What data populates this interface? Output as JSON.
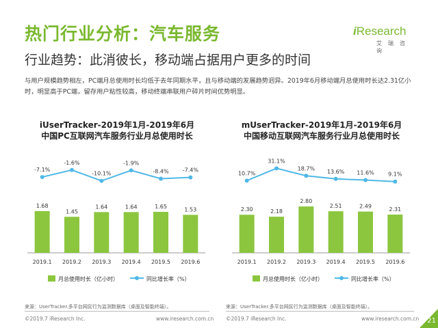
{
  "header": {
    "title": "热门行业分析：汽车服务",
    "subtitle": "行业趋势：此消彼长，移动端占据用户更多的时间",
    "description": "与用户规模趋势相左，PC端月总使用时长均低于去年同期水平，且与移动端的发展趋势迥异。2019年6月移动端月总使用时长达2.31亿小时，明显高于PC端，留存用户粘性较高，移动终端串联用户碎片时间优势明显。"
  },
  "logo": {
    "i": "i",
    "rest": "Research",
    "cn": "艾瑞咨询"
  },
  "colors": {
    "accent": "#7ab82f",
    "bar": "#8cc63f",
    "line": "#4fb8e6"
  },
  "chart_data": [
    {
      "type": "bar",
      "title_line1": "iUserTracker-2019年1月-2019年6月",
      "title_line2": "中国PC互联网汽车服务行业月总使用时长",
      "categories": [
        "2019.1",
        "2019.2",
        "2019.3",
        "2019.4",
        "2019.5",
        "2019.6"
      ],
      "series": [
        {
          "name": "月总使用时长（亿小时）",
          "type": "bar",
          "values": [
            1.68,
            1.45,
            1.64,
            1.64,
            1.65,
            1.53
          ],
          "labels": [
            "1.68",
            "1.45",
            "1.64",
            "1.64",
            "1.65",
            "1.53"
          ]
        },
        {
          "name": "同比增长率（%）",
          "type": "line",
          "values": [
            -7.1,
            -1.6,
            -10.1,
            -1.9,
            -8.4,
            -7.4
          ],
          "labels": [
            "-7.1%",
            "-1.6%",
            "-10.1%",
            "-1.9%",
            "-8.4%",
            "-7.4%"
          ]
        }
      ],
      "legend_position": "bottom",
      "source": "来源：UserTracker.多平台网民行为监测数据库（桌面及智能终端）。",
      "footer_left": "©2019.7 iResearch Inc.",
      "footer_right": "www.iresearch.com.cn"
    },
    {
      "type": "bar",
      "title_line1": "mUserTracker-2019年1月-2019年6月",
      "title_line2": "中国移动互联网汽车服务行业月总使用时长",
      "categories": [
        "2019.1",
        "2019.2",
        "2019.3",
        "2019.4",
        "2019.5",
        "2019.6"
      ],
      "series": [
        {
          "name": "月总使用时长（亿小时）",
          "type": "bar",
          "values": [
            2.3,
            2.18,
            2.8,
            2.51,
            2.49,
            2.31
          ],
          "labels": [
            "2.30",
            "2.18",
            "2.80",
            "2.51",
            "2.49",
            "2.31"
          ]
        },
        {
          "name": "同比增长率（%）",
          "type": "line",
          "values": [
            10.7,
            31.1,
            18.7,
            13.6,
            11.6,
            9.1
          ],
          "labels": [
            "10.7%",
            "31.1%",
            "18.7%",
            "13.6%",
            "11.6%",
            "9.1%"
          ]
        }
      ],
      "legend_position": "bottom",
      "source": "来源：UserTracker.多平台网民行为监测数据库（桌面及智能终端）。",
      "footer_left": "©2019.7 iResearch Inc.",
      "footer_right": "www.iresearch.com.cn"
    }
  ],
  "page_number": "21"
}
